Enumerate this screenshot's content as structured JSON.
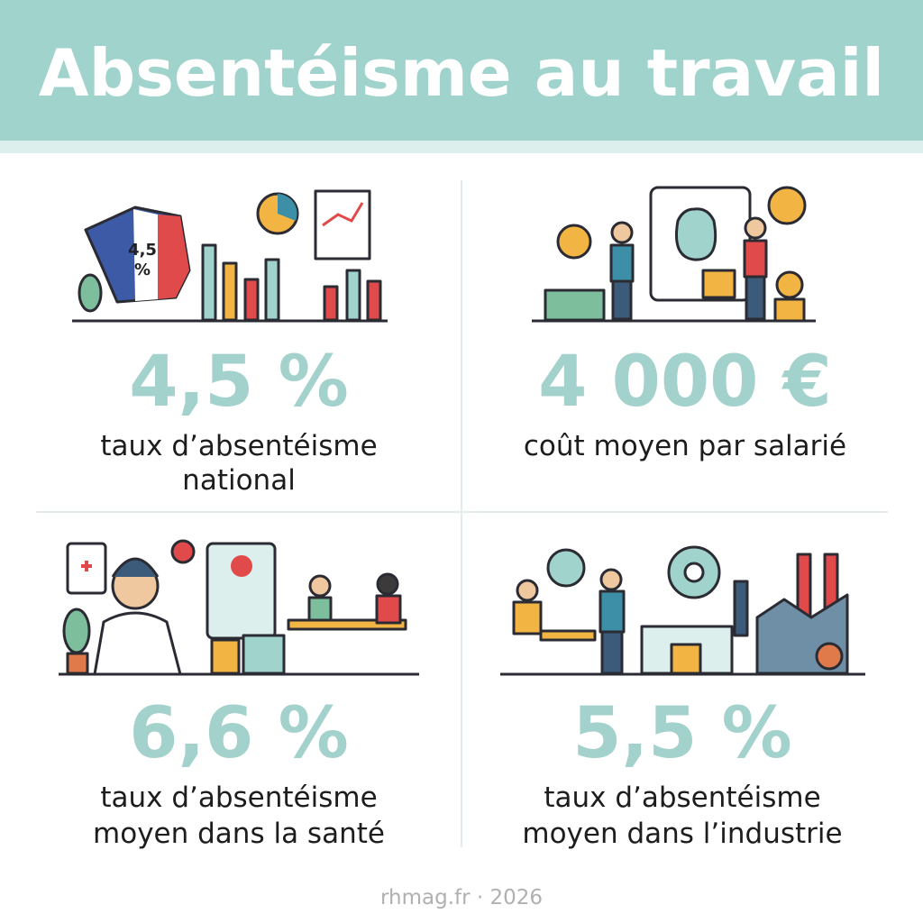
{
  "header": {
    "title": "Absentéisme au travail"
  },
  "cards": [
    {
      "value": "4,5 %",
      "label": [
        "taux d’absentéisme",
        "national"
      ],
      "illustration_text": [
        "4,5",
        "%"
      ]
    },
    {
      "value": "4 000 €",
      "label": [
        "coût moyen par salarié"
      ]
    },
    {
      "value": "6,6 %",
      "label": [
        "taux d’absentéisme",
        "moyen dans la santé"
      ]
    },
    {
      "value": "5,5 %",
      "label": [
        "taux d’absentéisme",
        "moyen dans l’industrie"
      ]
    }
  ],
  "footer": "rhmag.fr · 2026"
}
